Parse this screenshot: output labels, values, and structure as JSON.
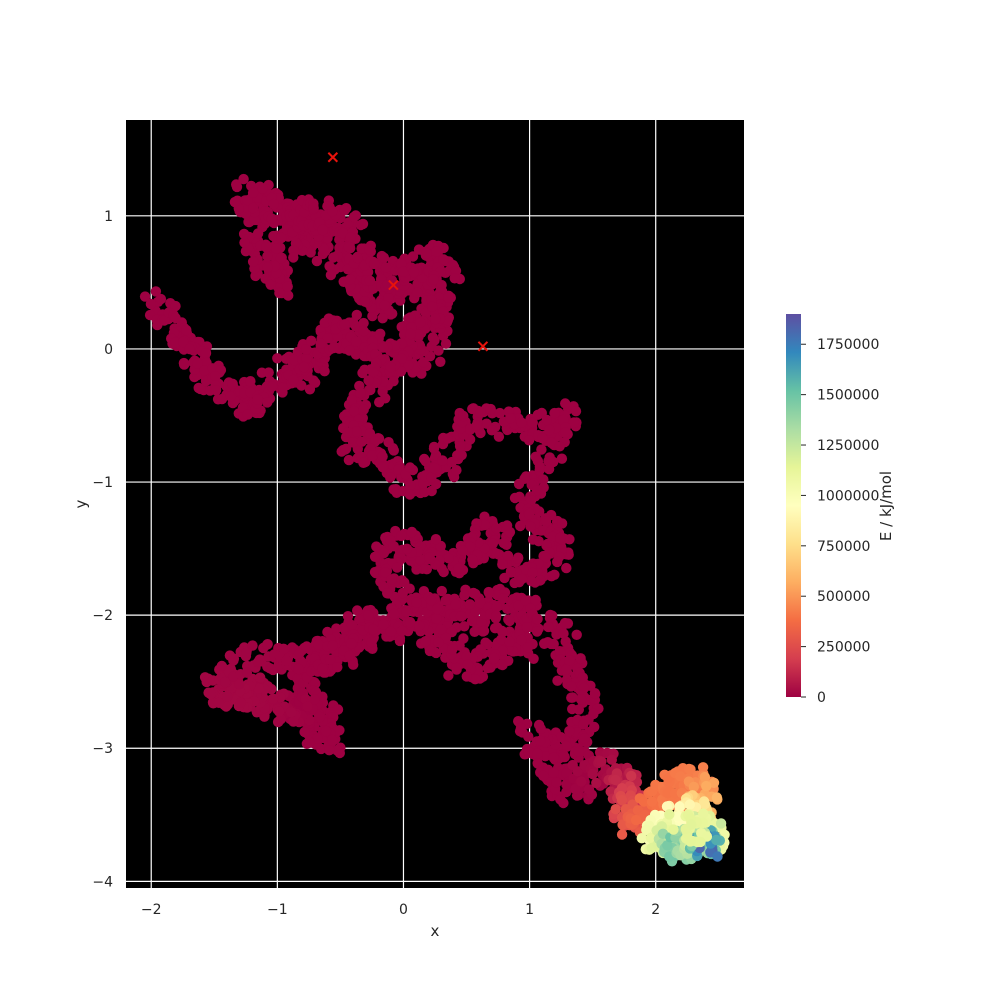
{
  "chart_data": {
    "type": "scatter",
    "title": "",
    "xlabel": "x",
    "ylabel": "y",
    "xlim": [
      -2.2,
      2.7
    ],
    "ylim": [
      -4.05,
      1.72
    ],
    "xticks": [
      -2,
      -1,
      0,
      1,
      2
    ],
    "yticks": [
      -4,
      -3,
      -2,
      -1,
      0,
      1
    ],
    "grid": true,
    "background_color": "#000000",
    "grid_color": "#ffffff",
    "colormap": "Spectral",
    "colorbar": {
      "label": "E / kJ/mol",
      "min": 0,
      "max": 1900000,
      "ticks": [
        0,
        250000,
        500000,
        750000,
        1000000,
        1250000,
        1500000,
        1750000
      ],
      "tick_labels": [
        "0",
        "250000",
        "500000",
        "750000",
        "1000000",
        "1250000",
        "1500000",
        "1750000"
      ],
      "stops": [
        "#9e0142",
        "#d53e4f",
        "#f46d43",
        "#fdae61",
        "#fee08b",
        "#ffffbf",
        "#e6f598",
        "#abdda4",
        "#66c2a5",
        "#3288bd",
        "#5e4fa2"
      ]
    },
    "trajectory": {
      "description_points": "Random-walk trajectory path waypoints (x, y, E)",
      "points": [
        [
          -2.0,
          0.33,
          0
        ],
        [
          -1.8,
          0.15,
          0
        ],
        [
          -1.65,
          -0.05,
          0
        ],
        [
          -1.55,
          -0.2,
          0
        ],
        [
          -1.35,
          -0.35,
          0
        ],
        [
          -1.2,
          -0.42,
          0
        ],
        [
          -1.05,
          -0.3,
          0
        ],
        [
          -0.85,
          -0.1,
          0
        ],
        [
          -0.75,
          -0.2,
          0
        ],
        [
          -0.7,
          0.05,
          0
        ],
        [
          -0.5,
          0.15,
          0
        ],
        [
          -0.35,
          0.05,
          0
        ],
        [
          -0.2,
          -0.05,
          0
        ],
        [
          -0.05,
          -0.1,
          0
        ],
        [
          0.2,
          -0.05,
          0
        ],
        [
          0.3,
          0.3,
          0
        ],
        [
          0.15,
          0.55,
          0
        ],
        [
          -0.1,
          0.4,
          0
        ],
        [
          -0.25,
          0.3,
          0
        ],
        [
          -0.4,
          0.55,
          0
        ],
        [
          -0.6,
          0.75,
          0
        ],
        [
          -0.75,
          0.95,
          0
        ],
        [
          -0.95,
          0.75,
          0
        ],
        [
          -1.0,
          0.5,
          0
        ],
        [
          -1.1,
          0.7,
          0
        ],
        [
          -1.2,
          0.95,
          0
        ],
        [
          -1.25,
          1.2,
          0
        ],
        [
          -1.05,
          1.1,
          0
        ],
        [
          -0.9,
          0.9,
          0
        ],
        [
          -0.75,
          1.05,
          0
        ],
        [
          -0.6,
          1.0,
          0
        ],
        [
          -0.45,
          0.9,
          0
        ],
        [
          -0.35,
          0.7,
          0
        ],
        [
          -0.2,
          0.55,
          0
        ],
        [
          0.05,
          0.6,
          0
        ],
        [
          0.25,
          0.7,
          0
        ],
        [
          0.35,
          0.45,
          0
        ],
        [
          0.2,
          0.2,
          0
        ],
        [
          0.0,
          0.05,
          0
        ],
        [
          -0.2,
          -0.2,
          0
        ],
        [
          -0.35,
          -0.45,
          0
        ],
        [
          -0.4,
          -0.7,
          0
        ],
        [
          -0.2,
          -0.8,
          0
        ],
        [
          -0.05,
          -0.95,
          0
        ],
        [
          0.15,
          -1.0,
          0
        ],
        [
          0.35,
          -0.8,
          0
        ],
        [
          0.55,
          -0.55,
          0
        ],
        [
          0.8,
          -0.55,
          0
        ],
        [
          1.1,
          -0.6,
          0
        ],
        [
          1.3,
          -0.5,
          0
        ],
        [
          1.1,
          -0.9,
          0
        ],
        [
          0.95,
          -1.2,
          0
        ],
        [
          1.1,
          -1.35,
          0
        ],
        [
          1.25,
          -1.5,
          0
        ],
        [
          1.05,
          -1.7,
          0
        ],
        [
          0.85,
          -1.6,
          0
        ],
        [
          0.7,
          -1.35,
          0
        ],
        [
          0.55,
          -1.5,
          0
        ],
        [
          0.4,
          -1.6,
          0
        ],
        [
          0.2,
          -1.55,
          0
        ],
        [
          0.0,
          -1.45,
          0
        ],
        [
          -0.15,
          -1.6,
          0
        ],
        [
          -0.05,
          -1.85,
          0
        ],
        [
          0.25,
          -2.0,
          0
        ],
        [
          0.5,
          -2.0,
          0
        ],
        [
          0.8,
          -2.05,
          0
        ],
        [
          1.0,
          -2.2,
          0
        ],
        [
          0.75,
          -2.3,
          0
        ],
        [
          0.5,
          -2.4,
          0
        ],
        [
          0.3,
          -2.2,
          0
        ],
        [
          0.0,
          -2.1,
          0
        ],
        [
          -0.2,
          -2.05,
          0
        ],
        [
          -0.4,
          -2.1,
          0
        ],
        [
          -0.55,
          -2.25,
          0
        ],
        [
          -0.7,
          -2.35,
          0
        ],
        [
          -0.8,
          -2.6,
          0
        ],
        [
          -0.6,
          -2.8,
          0
        ],
        [
          -0.6,
          -3.0,
          0
        ],
        [
          -0.8,
          -2.7,
          0
        ],
        [
          -1.0,
          -2.7,
          12000
        ],
        [
          -1.2,
          -2.55,
          15000
        ],
        [
          -1.35,
          -2.6,
          18000
        ],
        [
          -1.5,
          -2.55,
          15000
        ],
        [
          -1.3,
          -2.35,
          10000
        ],
        [
          -1.0,
          -2.3,
          5000
        ],
        [
          -0.75,
          -2.35,
          0
        ],
        [
          -0.5,
          -2.3,
          0
        ],
        [
          -0.3,
          -2.2,
          0
        ],
        [
          0.0,
          -2.0,
          0
        ],
        [
          0.4,
          -1.9,
          0
        ],
        [
          0.75,
          -1.9,
          0
        ],
        [
          1.05,
          -2.0,
          0
        ],
        [
          1.25,
          -2.2,
          0
        ],
        [
          1.35,
          -2.45,
          0
        ],
        [
          1.45,
          -2.7,
          0
        ],
        [
          1.4,
          -2.95,
          0
        ],
        [
          1.2,
          -3.0,
          0
        ],
        [
          1.0,
          -2.9,
          0
        ],
        [
          1.2,
          -3.2,
          0
        ],
        [
          1.35,
          -3.35,
          0
        ],
        [
          1.55,
          -3.1,
          20000
        ],
        [
          1.7,
          -3.25,
          60000
        ],
        [
          1.8,
          -3.3,
          150000
        ],
        [
          1.75,
          -3.5,
          250000
        ],
        [
          1.85,
          -3.55,
          320000
        ],
        [
          2.0,
          -3.45,
          380000
        ],
        [
          2.15,
          -3.35,
          420000
        ],
        [
          2.2,
          -3.25,
          400000
        ],
        [
          2.35,
          -3.25,
          450000
        ],
        [
          2.4,
          -3.4,
          600000
        ],
        [
          2.3,
          -3.5,
          800000
        ],
        [
          2.1,
          -3.55,
          950000
        ],
        [
          1.95,
          -3.65,
          1050000
        ],
        [
          2.1,
          -3.7,
          1200000
        ],
        [
          2.2,
          -3.75,
          1500000
        ],
        [
          2.3,
          -3.7,
          1300000
        ],
        [
          2.45,
          -3.65,
          1050000
        ],
        [
          2.4,
          -3.72,
          1850000
        ],
        [
          2.35,
          -3.6,
          1100000
        ],
        [
          2.2,
          -3.6,
          1150000
        ]
      ]
    },
    "markers": {
      "symbol": "x",
      "color": "#e8130c",
      "points": [
        [
          -0.56,
          1.44
        ],
        [
          0.63,
          0.02
        ],
        [
          -0.08,
          0.48
        ]
      ]
    }
  }
}
